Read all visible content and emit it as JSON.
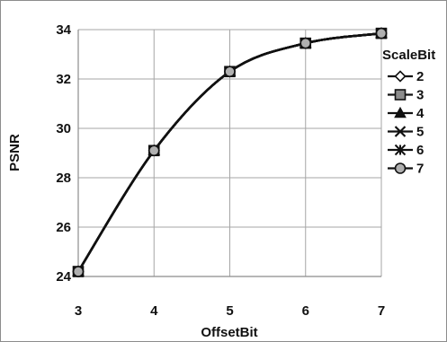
{
  "chart_data": {
    "type": "line",
    "xlabel": "OffsetBit",
    "ylabel": "PSNR",
    "x": [
      3,
      4,
      5,
      6,
      7
    ],
    "xlim": [
      3,
      7
    ],
    "ylim": [
      24,
      34
    ],
    "yticks": [
      24,
      26,
      28,
      30,
      32,
      34
    ],
    "xticks": [
      3,
      4,
      5,
      6,
      7
    ],
    "grid": true,
    "legend_title": "ScaleBit",
    "legend_position": "right",
    "series": [
      {
        "name": "2",
        "marker": "diamond",
        "values": [
          24.2,
          29.1,
          32.3,
          33.45,
          33.85
        ]
      },
      {
        "name": "3",
        "marker": "square",
        "values": [
          24.2,
          29.1,
          32.3,
          33.45,
          33.85
        ]
      },
      {
        "name": "4",
        "marker": "triangle",
        "values": [
          24.2,
          29.1,
          32.3,
          33.45,
          33.85
        ]
      },
      {
        "name": "5",
        "marker": "x",
        "values": [
          24.2,
          29.1,
          32.3,
          33.45,
          33.85
        ]
      },
      {
        "name": "6",
        "marker": "star",
        "values": [
          24.2,
          29.1,
          32.3,
          33.45,
          33.85
        ]
      },
      {
        "name": "7",
        "marker": "circle",
        "values": [
          24.2,
          29.1,
          32.3,
          33.45,
          33.85
        ]
      }
    ]
  }
}
